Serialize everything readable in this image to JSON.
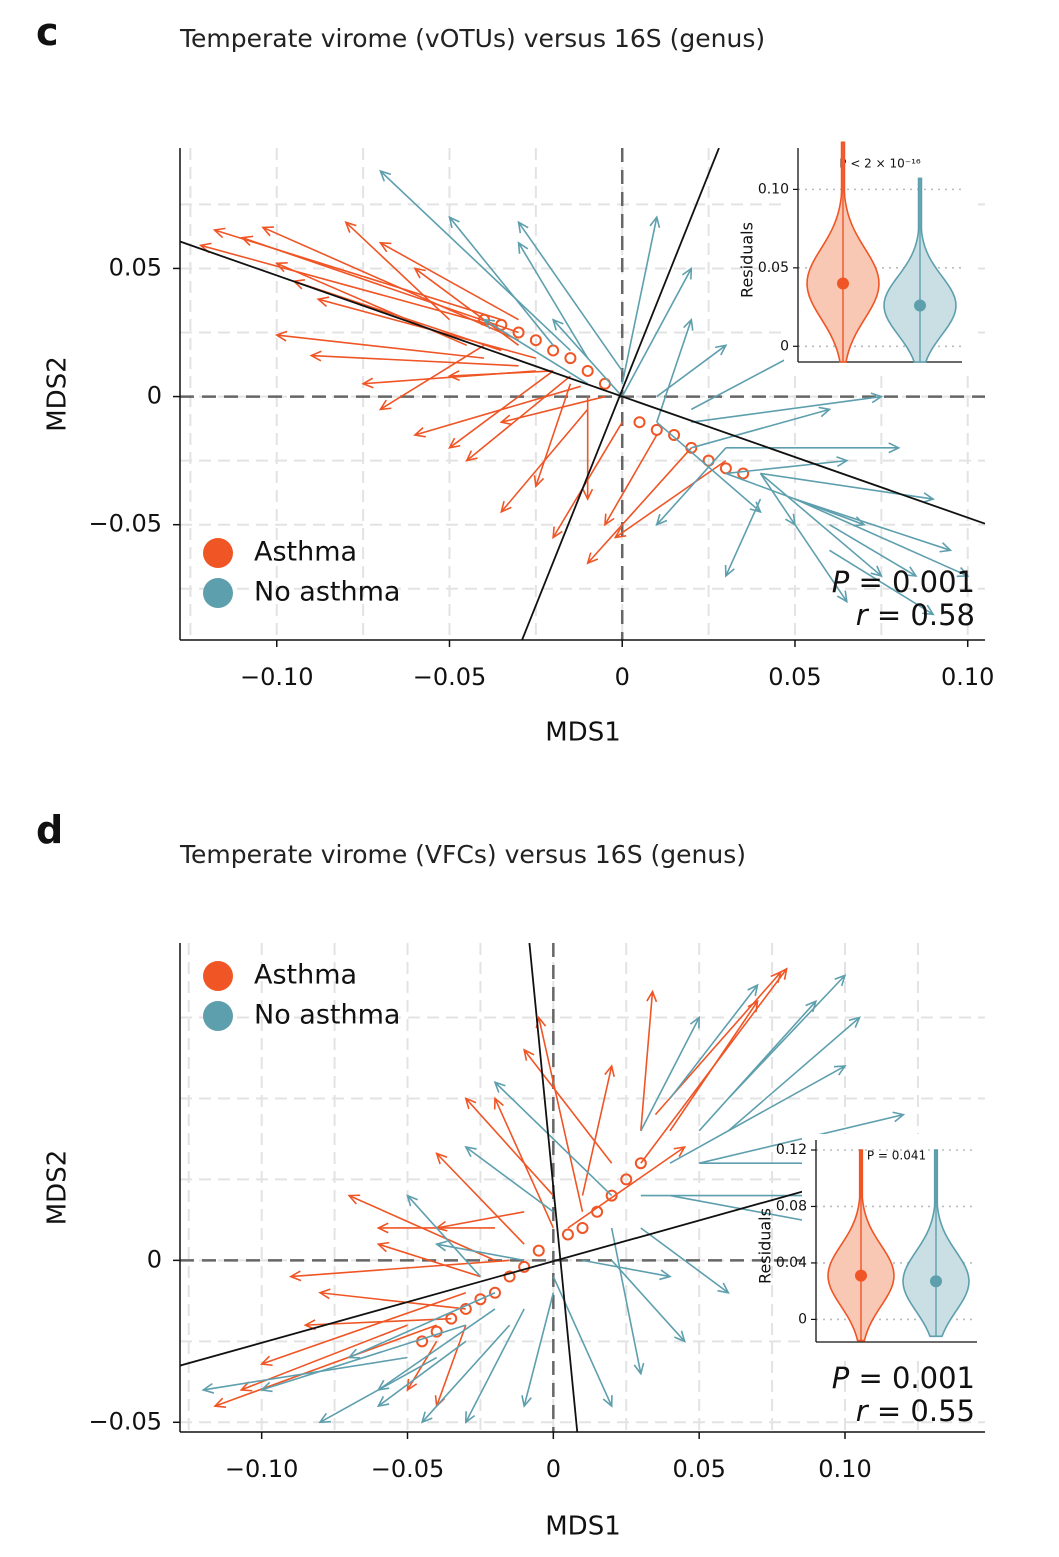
{
  "figure": {
    "panels": [
      {
        "letter": "c",
        "title": "Temperate virome (vOTUs) versus 16S (genus)"
      },
      {
        "letter": "d",
        "title": "Temperate virome (VFCs) versus 16S (genus)"
      }
    ]
  },
  "colors": {
    "asthma": "#EF5525",
    "no_asthma": "#5E9FAE",
    "axis": "#222222",
    "grid": "#dddddd"
  },
  "chart_data": [
    {
      "type": "scatter",
      "subtype": "procrustes",
      "title": "Temperate virome (vOTUs) versus 16S (genus)",
      "xlabel": "MDS1",
      "ylabel": "MDS2",
      "xlim": [
        -0.128,
        0.105
      ],
      "ylim": [
        -0.095,
        0.097
      ],
      "xticks": [
        -0.1,
        -0.05,
        0,
        0.05,
        0.1
      ],
      "xtick_labels": [
        "−0.10",
        "−0.05",
        "0",
        "0.05",
        "0.10"
      ],
      "yticks": [
        -0.05,
        0,
        0.05
      ],
      "ytick_labels": [
        "−0.05",
        "0",
        "0.05"
      ],
      "legend": {
        "position": "bottom-left",
        "entries": [
          "Asthma",
          "No asthma"
        ]
      },
      "stats": {
        "P": "0.001",
        "r": "0.58"
      },
      "rotation_axes": [
        {
          "x1": -0.128,
          "y1": 0.0605,
          "x2": 0.105,
          "y2": -0.0496
        },
        {
          "x1": -0.029,
          "y1": -0.095,
          "x2": 0.028,
          "y2": 0.097
        }
      ],
      "series": [
        {
          "name": "Asthma",
          "color": "#EF5525",
          "arrows": [
            [
              -0.035,
              0.03,
              -0.118,
              0.065
            ],
            [
              -0.03,
              0.025,
              -0.11,
              0.062
            ],
            [
              -0.038,
              0.028,
              -0.122,
              0.059
            ],
            [
              -0.045,
              0.02,
              -0.1,
              0.052
            ],
            [
              -0.035,
              0.018,
              -0.095,
              0.045
            ],
            [
              -0.025,
              0.015,
              -0.088,
              0.038
            ],
            [
              -0.04,
              0.015,
              -0.1,
              0.024
            ],
            [
              -0.03,
              0.012,
              -0.09,
              0.016
            ],
            [
              -0.025,
              0.01,
              -0.075,
              0.005
            ],
            [
              -0.04,
              0.02,
              -0.07,
              -0.005
            ],
            [
              -0.02,
              0.01,
              -0.05,
              -0.02
            ],
            [
              -0.015,
              0.008,
              -0.045,
              -0.025
            ],
            [
              -0.015,
              0.005,
              -0.025,
              -0.035
            ],
            [
              -0.01,
              0.0,
              -0.01,
              -0.04
            ],
            [
              -0.01,
              -0.005,
              -0.035,
              -0.045
            ],
            [
              0.0,
              -0.01,
              -0.02,
              -0.055
            ],
            [
              0.02,
              -0.02,
              -0.01,
              -0.065
            ],
            [
              0.03,
              -0.025,
              -0.002,
              -0.055
            ],
            [
              -0.03,
              0.03,
              -0.07,
              0.06
            ],
            [
              -0.05,
              0.03,
              -0.08,
              0.068
            ],
            [
              -0.03,
              0.02,
              -0.06,
              0.05
            ],
            [
              -0.02,
              0.01,
              -0.05,
              0.008
            ],
            [
              -0.005,
              0.0,
              -0.035,
              -0.01
            ],
            [
              -0.03,
              0.022,
              -0.104,
              0.066
            ],
            [
              -0.012,
              0.004,
              -0.06,
              -0.015
            ],
            [
              0.01,
              -0.015,
              -0.005,
              -0.05
            ]
          ],
          "circles": [
            [
              -0.04,
              0.03
            ],
            [
              -0.035,
              0.028
            ],
            [
              -0.03,
              0.025
            ],
            [
              -0.025,
              0.022
            ],
            [
              -0.02,
              0.018
            ],
            [
              -0.015,
              0.015
            ],
            [
              -0.01,
              0.01
            ],
            [
              -0.005,
              0.005
            ],
            [
              0.005,
              -0.01
            ],
            [
              0.01,
              -0.013
            ],
            [
              0.015,
              -0.015
            ],
            [
              0.02,
              -0.02
            ],
            [
              0.025,
              -0.025
            ],
            [
              0.03,
              -0.028
            ],
            [
              0.035,
              -0.03
            ]
          ]
        },
        {
          "name": "No asthma",
          "color": "#5E9FAE",
          "arrows": [
            [
              -0.015,
              0.018,
              -0.07,
              0.088
            ],
            [
              -0.02,
              0.02,
              -0.05,
              0.07
            ],
            [
              -0.01,
              0.015,
              -0.03,
              0.06
            ],
            [
              0.0,
              0.01,
              -0.03,
              0.068
            ],
            [
              0.0,
              0.005,
              0.01,
              0.07
            ],
            [
              0.0,
              0.0,
              0.02,
              0.05
            ],
            [
              0.01,
              0.0,
              0.03,
              0.02
            ],
            [
              0.02,
              -0.005,
              0.055,
              0.02
            ],
            [
              0.02,
              -0.01,
              0.075,
              0.0
            ],
            [
              0.03,
              -0.02,
              0.08,
              -0.02
            ],
            [
              0.04,
              -0.03,
              0.09,
              -0.04
            ],
            [
              0.03,
              -0.03,
              0.07,
              -0.05
            ],
            [
              0.05,
              -0.04,
              0.095,
              -0.06
            ],
            [
              0.06,
              -0.05,
              0.085,
              -0.07
            ],
            [
              0.06,
              -0.06,
              0.09,
              -0.085
            ],
            [
              0.05,
              -0.05,
              0.065,
              -0.08
            ],
            [
              0.04,
              -0.04,
              0.03,
              -0.07
            ],
            [
              0.04,
              -0.03,
              0.05,
              -0.05
            ],
            [
              0.03,
              -0.02,
              0.01,
              -0.05
            ],
            [
              0.01,
              -0.01,
              0.02,
              0.03
            ],
            [
              0.04,
              -0.03,
              0.075,
              -0.07
            ],
            [
              0.05,
              -0.04,
              0.1,
              -0.07
            ],
            [
              0.02,
              -0.02,
              0.06,
              -0.005
            ],
            [
              0.03,
              -0.03,
              0.065,
              -0.025
            ],
            [
              0.0,
              0.0,
              -0.02,
              0.03
            ],
            [
              -0.01,
              0.005,
              -0.04,
              0.03
            ],
            [
              0.01,
              -0.01,
              0.04,
              -0.045
            ]
          ],
          "circles": []
        }
      ],
      "inset": {
        "type": "violin",
        "ylabel": "Residuals",
        "annotation": "P < 2 × 10⁻¹⁶",
        "yticks": [
          0,
          0.05,
          0.1
        ],
        "ytick_labels": [
          "0",
          "0.05",
          "0.10"
        ],
        "ylim": [
          -0.01,
          0.12
        ],
        "groups": [
          {
            "name": "Asthma",
            "median": 0.04,
            "min": -0.01,
            "max": 0.13,
            "color": "#EF5525",
            "fill": "#F8C8B4"
          },
          {
            "name": "No asthma",
            "median": 0.026,
            "min": -0.01,
            "max": 0.107,
            "color": "#5E9FAE",
            "fill": "#C9DFE4"
          }
        ]
      }
    },
    {
      "type": "scatter",
      "subtype": "procrustes",
      "title": "Temperate virome (VFCs) versus 16S (genus)",
      "xlabel": "MDS1",
      "ylabel": "MDS2",
      "xlim": [
        -0.128,
        0.148
      ],
      "ylim": [
        -0.053,
        0.098
      ],
      "xticks": [
        -0.1,
        -0.05,
        0,
        0.05,
        0.1
      ],
      "xtick_labels": [
        "−0.10",
        "−0.05",
        "0",
        "0.05",
        "0.10"
      ],
      "yticks": [
        -0.05,
        0
      ],
      "ytick_labels": [
        "−0.05",
        "0"
      ],
      "legend": {
        "position": "top-left",
        "entries": [
          "Asthma",
          "No asthma"
        ]
      },
      "stats": {
        "P": "0.001",
        "r": "0.55"
      },
      "rotation_axes": [
        {
          "x1": -0.128,
          "y1": -0.0325,
          "x2": 0.148,
          "y2": 0.037
        },
        {
          "x1": -0.0082,
          "y1": 0.098,
          "x2": 0.0082,
          "y2": -0.053
        }
      ],
      "series": [
        {
          "name": "Asthma",
          "color": "#EF5525",
          "arrows": [
            [
              -0.04,
              -0.02,
              -0.116,
              -0.045
            ],
            [
              -0.05,
              -0.02,
              -0.107,
              -0.04
            ],
            [
              -0.03,
              -0.01,
              -0.1,
              -0.032
            ],
            [
              -0.025,
              -0.005,
              -0.06,
              0.005
            ],
            [
              -0.02,
              0.0,
              -0.07,
              0.02
            ],
            [
              -0.01,
              0.005,
              -0.04,
              0.033
            ],
            [
              -0.02,
              0.01,
              -0.06,
              0.01
            ],
            [
              -0.03,
              -0.015,
              -0.08,
              -0.01
            ],
            [
              -0.04,
              -0.025,
              -0.05,
              -0.04
            ],
            [
              -0.03,
              -0.02,
              -0.04,
              -0.045
            ],
            [
              0.0,
              0.01,
              -0.02,
              0.05
            ],
            [
              0.01,
              0.02,
              0.02,
              0.06
            ],
            [
              0.03,
              0.03,
              0.08,
              0.09
            ],
            [
              0.04,
              0.04,
              0.07,
              0.08
            ],
            [
              0.03,
              0.04,
              0.034,
              0.083
            ],
            [
              0.02,
              0.03,
              -0.01,
              0.065
            ],
            [
              0.0,
              0.02,
              -0.03,
              0.05
            ],
            [
              -0.01,
              0.015,
              -0.04,
              0.01
            ],
            [
              -0.015,
              0.0,
              -0.09,
              -0.005
            ],
            [
              0.01,
              0.015,
              -0.005,
              0.075
            ],
            [
              0.035,
              0.045,
              0.078,
              0.089
            ],
            [
              -0.035,
              -0.018,
              -0.085,
              -0.02
            ],
            [
              0.005,
              0.01,
              0.045,
              0.035
            ]
          ],
          "circles": [
            [
              -0.045,
              -0.025
            ],
            [
              -0.04,
              -0.022
            ],
            [
              -0.035,
              -0.018
            ],
            [
              -0.03,
              -0.015
            ],
            [
              -0.025,
              -0.012
            ],
            [
              -0.02,
              -0.01
            ],
            [
              -0.015,
              -0.005
            ],
            [
              -0.01,
              -0.002
            ],
            [
              -0.005,
              0.003
            ],
            [
              0.005,
              0.008
            ],
            [
              0.01,
              0.01
            ],
            [
              0.015,
              0.015
            ],
            [
              0.02,
              0.02
            ],
            [
              0.025,
              0.025
            ],
            [
              0.03,
              0.03
            ]
          ]
        },
        {
          "name": "No asthma",
          "color": "#5E9FAE",
          "arrows": [
            [
              -0.02,
              -0.01,
              -0.07,
              -0.03
            ],
            [
              -0.02,
              -0.015,
              -0.06,
              -0.04
            ],
            [
              -0.03,
              -0.02,
              -0.1,
              -0.04
            ],
            [
              -0.01,
              -0.015,
              -0.03,
              -0.05
            ],
            [
              0.0,
              -0.01,
              -0.01,
              -0.045
            ],
            [
              0.0,
              -0.005,
              0.02,
              -0.045
            ],
            [
              0.02,
              0.0,
              0.045,
              -0.025
            ],
            [
              0.03,
              0.01,
              0.06,
              -0.01
            ],
            [
              0.04,
              0.02,
              0.1,
              0.01
            ],
            [
              0.05,
              0.03,
              0.13,
              0.03
            ],
            [
              0.04,
              0.03,
              0.1,
              0.06
            ],
            [
              0.06,
              0.04,
              0.105,
              0.075
            ],
            [
              0.05,
              0.04,
              0.09,
              0.08
            ],
            [
              0.04,
              0.05,
              0.07,
              0.085
            ],
            [
              0.03,
              0.04,
              0.05,
              0.075
            ],
            [
              0.02,
              0.02,
              -0.02,
              0.055
            ],
            [
              0.0,
              0.015,
              -0.03,
              0.035
            ],
            [
              -0.01,
              0.0,
              -0.04,
              0.005
            ],
            [
              -0.03,
              -0.025,
              -0.06,
              -0.045
            ],
            [
              -0.04,
              -0.03,
              -0.08,
              -0.05
            ],
            [
              -0.015,
              -0.02,
              -0.045,
              -0.05
            ],
            [
              0.01,
              0.0,
              0.04,
              -0.005
            ],
            [
              0.03,
              0.02,
              0.09,
              0.02
            ],
            [
              0.05,
              0.03,
              0.12,
              0.045
            ],
            [
              0.02,
              0.01,
              0.03,
              -0.035
            ],
            [
              -0.025,
              -0.005,
              -0.05,
              0.02
            ],
            [
              0.06,
              0.05,
              0.1,
              0.088
            ],
            [
              -0.05,
              -0.03,
              -0.12,
              -0.04
            ]
          ],
          "circles": []
        }
      ],
      "inset": {
        "type": "violin",
        "ylabel": "Residuals",
        "annotation": "P = 0.041",
        "yticks": [
          0,
          0.04,
          0.08,
          0.12
        ],
        "ytick_labels": [
          "0",
          "0.04",
          "0.08",
          "0.12"
        ],
        "ylim": [
          -0.016,
          0.12
        ],
        "groups": [
          {
            "name": "Asthma",
            "median": 0.031,
            "min": -0.015,
            "max": 0.12,
            "color": "#EF5525",
            "fill": "#F8C8B4"
          },
          {
            "name": "No asthma",
            "median": 0.027,
            "min": -0.012,
            "max": 0.12,
            "color": "#5E9FAE",
            "fill": "#C9DFE4"
          }
        ]
      }
    }
  ]
}
